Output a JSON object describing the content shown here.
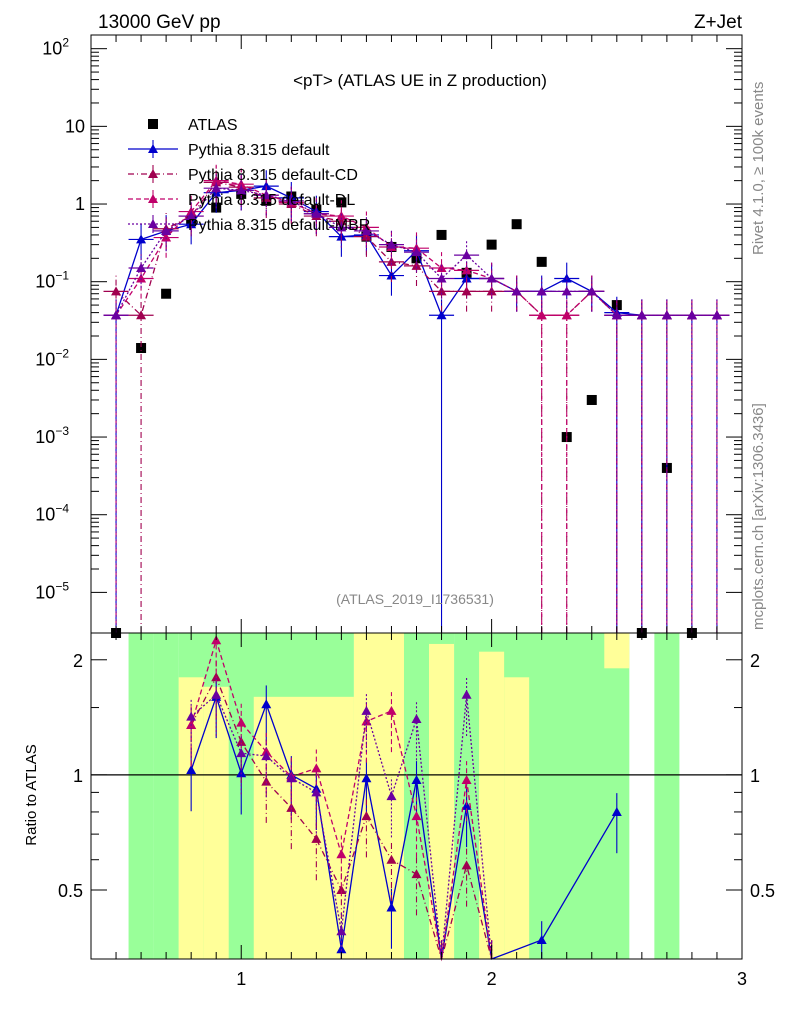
{
  "header": {
    "left": "13000 GeV pp",
    "right": "Z+Jet"
  },
  "side_labels": {
    "rivet": "Rivet 4.1.0, ≥ 100k events",
    "mcplots": "mcplots.cern.ch [arXiv:1306.3436]"
  },
  "colors": {
    "pythia_default": "#0000cc",
    "cd": "#a0004f",
    "dl": "#c0006a",
    "mbr": "#6a00a0",
    "band_green": "#99ff99",
    "band_yellow": "#ffff99"
  },
  "chart_data": [
    {
      "type": "scatter",
      "title": "<pT> (ATLAS UE in Z production)",
      "watermark": "(ATLAS_2019_I1736531)",
      "yscale": "log",
      "xlim": [
        0.4,
        3.0
      ],
      "ylim": [
        3e-06,
        150
      ],
      "ytick_labels": [
        {
          "base": "10",
          "exp": "2",
          "value": 100
        },
        {
          "base": "10",
          "exp": "",
          "value": 10
        },
        {
          "base": "1",
          "exp": "",
          "value": 1
        },
        {
          "base": "10",
          "exp": "−1",
          "value": 0.1
        },
        {
          "base": "10",
          "exp": "−2",
          "value": 0.01
        },
        {
          "base": "10",
          "exp": "−3",
          "value": 0.001
        },
        {
          "base": "10",
          "exp": "−4",
          "value": 0.0001
        },
        {
          "base": "10",
          "exp": "−5",
          "value": 1e-05
        }
      ],
      "series": [
        {
          "name": "ATLAS",
          "style": "data",
          "x": [
            0.5,
            0.6,
            0.7,
            0.8,
            0.9,
            1.0,
            1.1,
            1.2,
            1.3,
            1.4,
            1.5,
            1.6,
            1.7,
            1.8,
            1.9,
            2.0,
            2.1,
            2.2,
            2.3,
            2.4,
            2.5,
            2.6,
            2.7,
            2.8
          ],
          "y": [
            3e-06,
            0.014,
            0.07,
            0.6,
            0.9,
            1.35,
            1.1,
            1.25,
            0.85,
            1.05,
            0.38,
            0.28,
            0.2,
            0.4,
            0.13,
            0.3,
            0.55,
            0.18,
            0.001,
            0.003,
            0.05,
            3e-06,
            0.0004,
            3e-06
          ]
        },
        {
          "name": "Pythia 8.315 default",
          "style": "solid",
          "x": [
            0.5,
            0.6,
            0.7,
            0.8,
            0.9,
            1.0,
            1.1,
            1.2,
            1.3,
            1.4,
            1.5,
            1.6,
            1.7,
            1.8,
            1.9,
            2.0,
            2.1,
            2.2,
            2.3,
            2.4,
            2.5,
            2.6,
            2.7,
            2.8,
            2.9
          ],
          "y": [
            0.037,
            0.35,
            0.45,
            0.55,
            1.4,
            1.5,
            1.7,
            1.2,
            0.8,
            0.38,
            0.4,
            0.12,
            0.25,
            0.037,
            0.11,
            0.11,
            0.075,
            0.075,
            0.11,
            0.075,
            0.04,
            0.037,
            0.037,
            0.037,
            0.037
          ]
        },
        {
          "name": "Pythia 8.315 default-CD",
          "style": "dashdot",
          "x": [
            0.5,
            0.6,
            0.7,
            0.8,
            0.9,
            1.0,
            1.1,
            1.2,
            1.3,
            1.4,
            1.5,
            1.6,
            1.7,
            1.8,
            1.9,
            2.0,
            2.1,
            2.2,
            2.3,
            2.4,
            2.5,
            2.6,
            2.7,
            2.8,
            2.9
          ],
          "y": [
            0.075,
            0.037,
            0.48,
            0.7,
            1.9,
            1.65,
            1.2,
            1.0,
            0.7,
            0.6,
            0.38,
            0.18,
            0.16,
            0.075,
            0.075,
            0.075,
            0.075,
            0.037,
            0.037,
            0.075,
            0.037,
            0.037,
            0.037,
            0.037,
            0.037
          ]
        },
        {
          "name": "Pythia 8.315 default-DL",
          "style": "dashed",
          "x": [
            0.5,
            0.6,
            0.7,
            0.8,
            0.9,
            1.0,
            1.1,
            1.2,
            1.3,
            1.4,
            1.5,
            1.6,
            1.7,
            1.8,
            1.9,
            2.0,
            2.1,
            2.2,
            2.3,
            2.4,
            2.5,
            2.6,
            2.7,
            2.8,
            2.9
          ],
          "y": [
            0.037,
            0.11,
            0.37,
            0.8,
            2.0,
            1.8,
            1.3,
            1.05,
            0.75,
            0.7,
            0.5,
            0.28,
            0.27,
            0.15,
            0.14,
            0.11,
            0.075,
            0.037,
            0.037,
            0.075,
            0.037,
            0.037,
            0.037,
            0.037,
            0.037
          ]
        },
        {
          "name": "Pythia 8.315 default-MBR",
          "style": "dotted",
          "x": [
            0.5,
            0.6,
            0.7,
            0.8,
            0.9,
            1.0,
            1.1,
            1.2,
            1.3,
            1.4,
            1.5,
            1.6,
            1.7,
            1.8,
            1.9,
            2.0,
            2.1,
            2.2,
            2.3,
            2.4,
            2.5,
            2.6,
            2.7,
            2.8,
            2.9
          ],
          "y": [
            0.037,
            0.15,
            0.45,
            0.7,
            1.6,
            1.5,
            1.3,
            1.1,
            0.75,
            0.5,
            0.45,
            0.3,
            0.24,
            0.11,
            0.22,
            0.11,
            0.075,
            0.075,
            0.075,
            0.075,
            0.037,
            0.037,
            0.037,
            0.037,
            0.037
          ]
        }
      ]
    },
    {
      "type": "line",
      "ylabel": "Ratio to ATLAS",
      "xlim": [
        0.4,
        3.0
      ],
      "ylim": [
        0.33,
        2.35
      ],
      "ytick_labels": [
        {
          "label": "2",
          "value": 2
        },
        {
          "label": "1",
          "value": 1
        },
        {
          "label": "0.5",
          "value": 0.5
        }
      ],
      "xtick_labels": [
        {
          "label": "1",
          "value": 1
        },
        {
          "label": "2",
          "value": 2
        },
        {
          "label": "3",
          "value": 3
        }
      ],
      "reference_line": 1.0,
      "bands": {
        "green": [
          [
            0.55,
            0.65,
            0.3,
            2.4
          ],
          [
            0.65,
            0.75,
            0.3,
            2.4
          ],
          [
            0.75,
            1.45,
            0.3,
            2.4
          ],
          [
            1.45,
            1.65,
            0.3,
            2.4
          ],
          [
            1.65,
            1.75,
            0.3,
            2.4
          ],
          [
            1.75,
            1.85,
            0.3,
            2.4
          ],
          [
            1.85,
            2.55,
            0.3,
            2.4
          ],
          [
            2.65,
            2.75,
            0.3,
            2.4
          ]
        ],
        "yellow": [
          [
            0.75,
            0.85,
            0.3,
            1.8
          ],
          [
            0.85,
            0.95,
            0.3,
            1.7
          ],
          [
            1.05,
            1.45,
            0.3,
            1.6
          ],
          [
            1.45,
            1.65,
            0.3,
            2.4
          ],
          [
            1.75,
            1.85,
            0.3,
            2.2
          ],
          [
            1.95,
            2.05,
            0.3,
            2.1
          ],
          [
            2.05,
            2.15,
            0.3,
            1.8
          ],
          [
            2.45,
            2.55,
            1.9,
            2.4
          ]
        ]
      },
      "series": [
        {
          "name": "Pythia 8.315 default",
          "style": "solid",
          "x": [
            0.8,
            0.9,
            1.0,
            1.1,
            1.2,
            1.3,
            1.4,
            1.5,
            1.6,
            1.7,
            1.8,
            1.9,
            2.0,
            2.2,
            2.5
          ],
          "y": [
            1.03,
            1.6,
            1.01,
            1.53,
            1.0,
            0.92,
            0.35,
            0.98,
            0.45,
            0.97,
            0.33,
            0.83,
            0.33,
            0.37,
            0.8
          ]
        },
        {
          "name": "Pythia 8.315 default-CD",
          "style": "dashdot",
          "x": [
            0.8,
            0.9,
            1.0,
            1.1,
            1.2,
            1.3,
            1.4,
            1.5,
            1.6,
            1.7,
            1.8,
            1.9,
            2.0
          ],
          "y": [
            1.35,
            1.8,
            1.22,
            0.96,
            0.82,
            0.68,
            0.5,
            0.78,
            0.6,
            0.55,
            0.33,
            0.58,
            0.33
          ]
        },
        {
          "name": "Pythia 8.315 default-DL",
          "style": "dashed",
          "x": [
            0.8,
            0.9,
            1.0,
            1.1,
            1.2,
            1.3,
            1.4,
            1.5,
            1.6,
            1.7,
            1.8,
            1.9,
            2.0
          ],
          "y": [
            1.35,
            2.25,
            1.37,
            1.15,
            0.99,
            1.04,
            0.62,
            1.38,
            1.47,
            0.78,
            0.33,
            0.97,
            0.33
          ]
        },
        {
          "name": "Pythia 8.315 default-MBR",
          "style": "dotted",
          "x": [
            0.8,
            0.9,
            1.0,
            1.1,
            1.2,
            1.3,
            1.4,
            1.5,
            1.6,
            1.7,
            1.8,
            1.9,
            2.0
          ],
          "y": [
            1.42,
            1.62,
            1.14,
            1.12,
            0.98,
            0.9,
            0.39,
            1.47,
            0.88,
            1.4,
            0.33,
            1.62,
            0.33
          ]
        }
      ]
    }
  ]
}
